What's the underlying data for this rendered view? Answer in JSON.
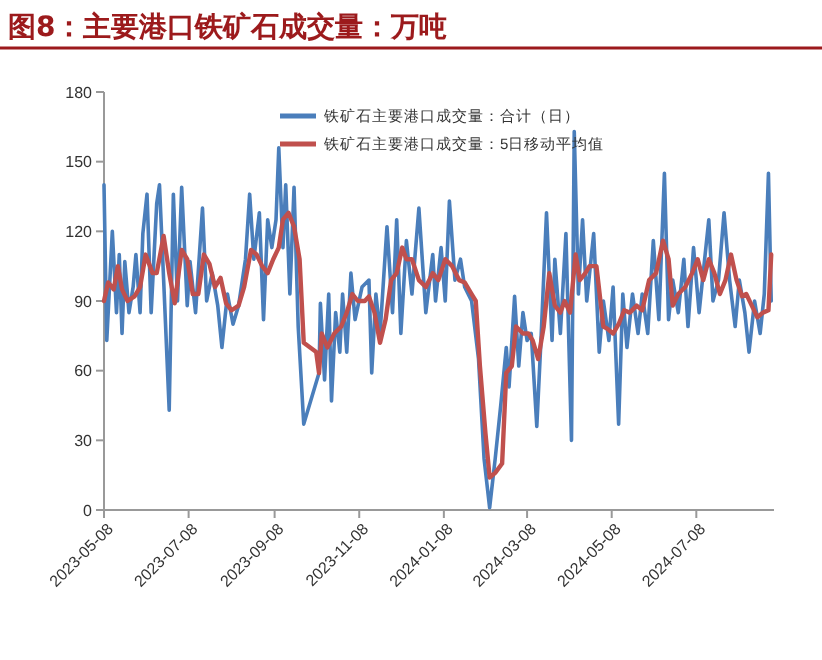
{
  "chart_data": {
    "type": "line",
    "title": "图8：主要港口铁矿石成交量：万吨",
    "xlim": [
      "2023-05-08",
      "2024-09-02"
    ],
    "xticks": [
      "2023-05-08",
      "2023-07-08",
      "2023-09-08",
      "2023-11-08",
      "2024-01-08",
      "2024-03-08",
      "2024-05-08",
      "2024-07-08"
    ],
    "ylim": [
      0,
      180
    ],
    "yticks": [
      0,
      30,
      60,
      90,
      120,
      150,
      180
    ],
    "grid": false,
    "legend": "top right",
    "marker": "none",
    "line_style": "solid",
    "series": [
      {
        "name": "铁矿石主要港口成交量：合计（日）",
        "color": "#4a7ebb",
        "x": [
          "2023-05-08",
          "2023-05-10",
          "2023-05-14",
          "2023-05-17",
          "2023-05-19",
          "2023-05-21",
          "2023-05-23",
          "2023-05-26",
          "2023-05-29",
          "2023-05-31",
          "2023-06-03",
          "2023-06-05",
          "2023-06-08",
          "2023-06-11",
          "2023-06-15",
          "2023-06-17",
          "2023-06-20",
          "2023-06-24",
          "2023-06-27",
          "2023-06-30",
          "2023-07-03",
          "2023-07-07",
          "2023-07-09",
          "2023-07-13",
          "2023-07-18",
          "2023-07-21",
          "2023-07-25",
          "2023-07-29",
          "2023-08-01",
          "2023-08-05",
          "2023-08-09",
          "2023-08-13",
          "2023-08-18",
          "2023-08-21",
          "2023-08-24",
          "2023-08-28",
          "2023-08-31",
          "2023-09-03",
          "2023-09-06",
          "2023-09-09",
          "2023-09-11",
          "2023-09-14",
          "2023-09-16",
          "2023-09-19",
          "2023-09-22",
          "2023-09-25",
          "2023-09-29",
          "2023-10-10",
          "2023-10-11",
          "2023-10-14",
          "2023-10-17",
          "2023-10-19",
          "2023-10-22",
          "2023-10-25",
          "2023-10-27",
          "2023-10-30",
          "2023-11-02",
          "2023-11-05",
          "2023-11-10",
          "2023-11-15",
          "2023-11-17",
          "2023-11-20",
          "2023-11-23",
          "2023-11-28",
          "2023-12-02",
          "2023-12-05",
          "2023-12-08",
          "2023-12-12",
          "2023-12-16",
          "2023-12-21",
          "2023-12-26",
          "2023-12-31",
          "2024-01-02",
          "2024-01-06",
          "2024-01-09",
          "2024-01-12",
          "2024-01-16",
          "2024-01-20",
          "2024-01-23",
          "2024-01-28",
          "2024-02-02",
          "2024-02-06",
          "2024-02-10",
          "2024-02-14",
          "2024-02-18",
          "2024-02-22",
          "2024-02-24",
          "2024-02-28",
          "2024-03-02",
          "2024-03-05",
          "2024-03-08",
          "2024-03-11",
          "2024-03-15",
          "2024-03-18",
          "2024-03-22",
          "2024-03-26",
          "2024-03-28",
          "2024-04-01",
          "2024-04-05",
          "2024-04-09",
          "2024-04-11",
          "2024-04-14",
          "2024-04-17",
          "2024-04-20",
          "2024-04-25",
          "2024-04-29",
          "2024-05-02",
          "2024-05-06",
          "2024-05-09",
          "2024-05-13",
          "2024-05-16",
          "2024-05-19",
          "2024-05-23",
          "2024-05-27",
          "2024-05-30",
          "2024-06-03",
          "2024-06-07",
          "2024-06-11",
          "2024-06-15",
          "2024-06-18",
          "2024-06-21",
          "2024-06-25",
          "2024-06-29",
          "2024-07-02",
          "2024-07-06",
          "2024-07-10",
          "2024-07-14",
          "2024-07-17",
          "2024-07-20",
          "2024-07-24",
          "2024-07-28",
          "2024-08-01",
          "2024-08-05",
          "2024-08-08",
          "2024-08-12",
          "2024-08-15",
          "2024-08-19",
          "2024-08-23",
          "2024-08-26",
          "2024-08-29",
          "2024-08-31"
        ],
        "values": [
          140,
          73,
          120,
          85,
          110,
          76,
          107,
          85,
          96,
          110,
          85,
          119,
          136,
          85,
          132,
          140,
          99,
          43,
          136,
          90,
          139,
          88,
          107,
          85,
          130,
          90,
          102,
          88,
          70,
          93,
          80,
          88,
          108,
          136,
          108,
          128,
          82,
          125,
          113,
          125,
          156,
          113,
          140,
          93,
          139,
          79,
          37,
          59,
          89,
          56,
          93,
          47,
          85,
          68,
          93,
          68,
          102,
          82,
          96,
          99,
          59,
          93,
          76,
          122,
          85,
          125,
          76,
          116,
          93,
          130,
          85,
          110,
          90,
          113,
          90,
          133,
          99,
          108,
          96,
          90,
          65,
          22,
          1,
          22,
          45,
          70,
          53,
          92,
          62,
          85,
          73,
          76,
          36,
          73,
          128,
          73,
          108,
          76,
          119,
          30,
          163,
          93,
          125,
          90,
          119,
          68,
          90,
          73,
          96,
          37,
          93,
          70,
          93,
          76,
          93,
          76,
          116,
          82,
          145,
          82,
          99,
          85,
          108,
          79,
          113,
          85,
          108,
          125,
          90,
          99,
          128,
          99,
          79,
          99,
          85,
          68,
          90,
          76,
          93,
          145,
          90
        ]
      },
      {
        "name": "铁矿石主要港口成交量：5日移动平均值",
        "color": "#c0504d",
        "x": [
          "2023-05-08",
          "2023-05-11",
          "2023-05-15",
          "2023-05-18",
          "2023-05-21",
          "2023-05-25",
          "2023-05-30",
          "2023-06-03",
          "2023-06-07",
          "2023-06-12",
          "2023-06-15",
          "2023-06-20",
          "2023-06-24",
          "2023-06-28",
          "2023-07-03",
          "2023-07-07",
          "2023-07-11",
          "2023-07-15",
          "2023-07-19",
          "2023-07-23",
          "2023-07-27",
          "2023-07-31",
          "2023-08-04",
          "2023-08-08",
          "2023-08-13",
          "2023-08-17",
          "2023-08-22",
          "2023-08-26",
          "2023-08-30",
          "2023-09-03",
          "2023-09-07",
          "2023-09-11",
          "2023-09-14",
          "2023-09-18",
          "2023-09-22",
          "2023-09-26",
          "2023-09-29",
          "2023-10-08",
          "2023-10-10",
          "2023-10-12",
          "2023-10-16",
          "2023-10-21",
          "2023-10-26",
          "2023-10-30",
          "2023-11-03",
          "2023-11-07",
          "2023-11-12",
          "2023-11-15",
          "2023-11-19",
          "2023-11-23",
          "2023-11-27",
          "2023-12-01",
          "2023-12-05",
          "2023-12-09",
          "2023-12-12",
          "2023-12-16",
          "2023-12-21",
          "2023-12-26",
          "2023-12-31",
          "2024-01-04",
          "2024-01-09",
          "2024-01-14",
          "2024-01-19",
          "2024-01-23",
          "2024-01-28",
          "2024-01-31",
          "2024-02-03",
          "2024-02-07",
          "2024-02-10",
          "2024-02-14",
          "2024-02-19",
          "2024-02-22",
          "2024-02-26",
          "2024-02-29",
          "2024-03-05",
          "2024-03-09",
          "2024-03-12",
          "2024-03-16",
          "2024-03-20",
          "2024-03-24",
          "2024-03-28",
          "2024-04-01",
          "2024-04-04",
          "2024-04-08",
          "2024-04-12",
          "2024-04-15",
          "2024-04-19",
          "2024-04-22",
          "2024-04-27",
          "2024-05-02",
          "2024-05-05",
          "2024-05-09",
          "2024-05-13",
          "2024-05-17",
          "2024-05-21",
          "2024-05-26",
          "2024-05-30",
          "2024-06-04",
          "2024-06-09",
          "2024-06-14",
          "2024-06-18",
          "2024-06-21",
          "2024-06-25",
          "2024-06-30",
          "2024-07-05",
          "2024-07-09",
          "2024-07-13",
          "2024-07-17",
          "2024-07-21",
          "2024-07-25",
          "2024-07-29",
          "2024-08-02",
          "2024-08-06",
          "2024-08-10",
          "2024-08-13",
          "2024-08-17",
          "2024-08-21",
          "2024-08-25",
          "2024-08-29",
          "2024-08-31"
        ],
        "values": [
          90,
          98,
          95,
          105,
          95,
          90,
          92,
          96,
          110,
          102,
          102,
          118,
          102,
          89,
          112,
          108,
          93,
          93,
          110,
          106,
          96,
          100,
          89,
          86,
          88,
          96,
          112,
          110,
          105,
          102,
          108,
          113,
          125,
          128,
          122,
          108,
          72,
          68,
          59,
          76,
          70,
          76,
          79,
          85,
          93,
          90,
          90,
          92,
          85,
          72,
          82,
          99,
          102,
          113,
          108,
          108,
          99,
          96,
          102,
          99,
          108,
          105,
          99,
          98,
          93,
          90,
          62,
          33,
          14,
          16,
          20,
          59,
          62,
          79,
          76,
          76,
          73,
          65,
          79,
          102,
          88,
          85,
          90,
          85,
          110,
          99,
          102,
          105,
          105,
          79,
          78,
          76,
          80,
          86,
          85,
          88,
          86,
          99,
          102,
          116,
          108,
          88,
          93,
          96,
          102,
          108,
          99,
          108,
          102,
          93,
          99,
          110,
          99,
          92,
          93,
          88,
          83,
          85,
          86,
          110
        ]
      }
    ]
  }
}
